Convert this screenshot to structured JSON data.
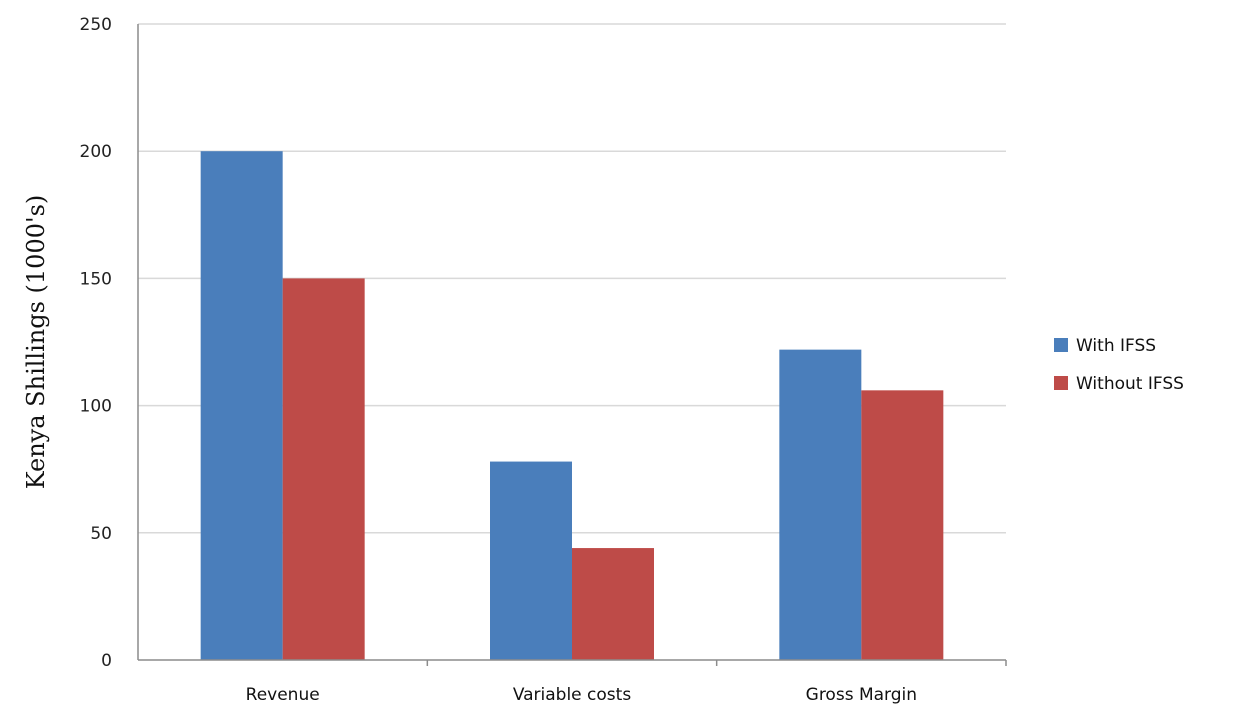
{
  "chart_data": {
    "type": "bar",
    "title": "",
    "xlabel": "",
    "ylabel": "Kenya Shillings (1000's)",
    "categories": [
      "Revenue",
      "Variable costs",
      "Gross Margin"
    ],
    "series": [
      {
        "name": "With IFSS",
        "values": [
          200,
          78,
          122
        ],
        "color": "#4a7ebb"
      },
      {
        "name": "Without IFSS",
        "values": [
          150,
          44,
          106
        ],
        "color": "#be4b48"
      }
    ],
    "ylim": [
      0,
      250
    ],
    "yticks": [
      "0",
      "50",
      "100",
      "150",
      "200",
      "250"
    ],
    "grid": true,
    "legend": "right"
  }
}
